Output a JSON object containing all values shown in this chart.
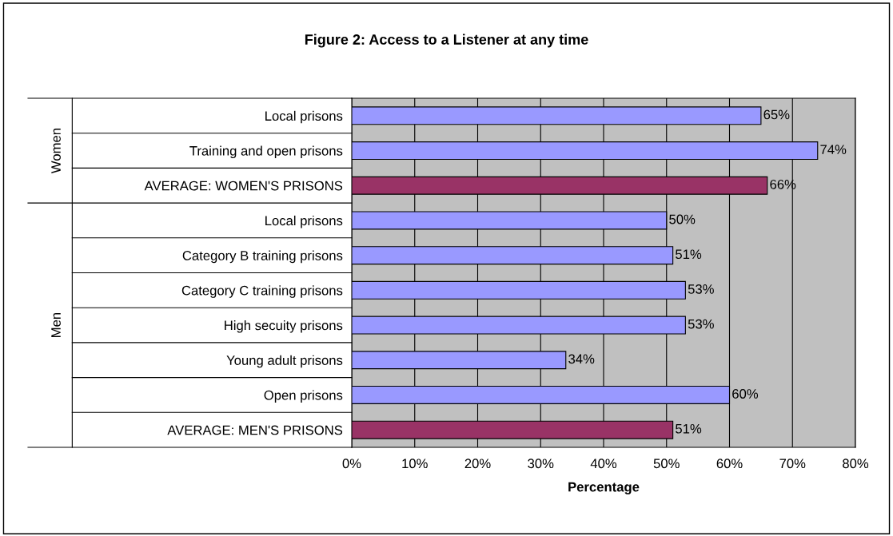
{
  "chart_data": {
    "type": "bar",
    "orientation": "horizontal",
    "title": "Figure 2: Access to a Listener at any time",
    "xlabel": "Percentage",
    "categories": [
      "Local prisons",
      "Training and open prisons",
      "AVERAGE: WOMEN'S PRISONS",
      "Local prisons",
      "Category B training prisons",
      "Category C training prisons",
      "High secuity prisons",
      "Young adult prisons",
      "Open prisons",
      "AVERAGE: MEN'S PRISONS"
    ],
    "values": [
      65,
      74,
      66,
      50,
      51,
      53,
      53,
      34,
      60,
      51
    ],
    "value_labels": [
      "65%",
      "74%",
      "66%",
      "50%",
      "51%",
      "53%",
      "53%",
      "34%",
      "60%",
      "51%"
    ],
    "colors": [
      "#9999ff",
      "#9999ff",
      "#993366",
      "#9999ff",
      "#9999ff",
      "#9999ff",
      "#9999ff",
      "#9999ff",
      "#9999ff",
      "#993366"
    ],
    "annotations": [
      "Women",
      "Men"
    ],
    "xlim": [
      0,
      80
    ],
    "xticks": [
      {
        "value": 0,
        "label": "0%"
      },
      {
        "value": 10,
        "label": "10%"
      },
      {
        "value": 20,
        "label": "20%"
      },
      {
        "value": 30,
        "label": "30%"
      },
      {
        "value": 40,
        "label": "40%"
      },
      {
        "value": 50,
        "label": "50%"
      },
      {
        "value": 60,
        "label": "60%"
      },
      {
        "value": 70,
        "label": "70%"
      },
      {
        "value": 80,
        "label": "80%"
      }
    ],
    "grid": "x"
  }
}
